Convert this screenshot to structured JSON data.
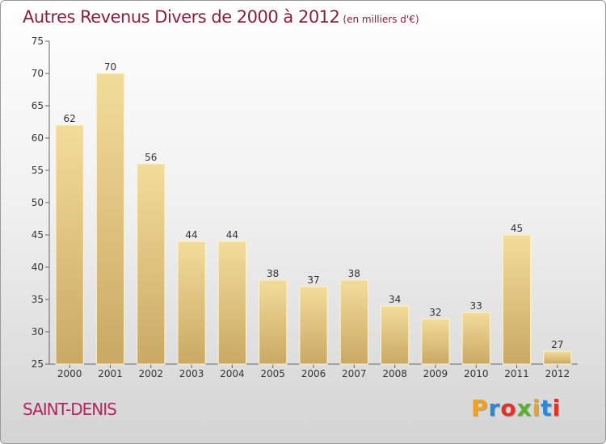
{
  "title": "Autres Revenus Divers de 2000 à 2012",
  "subtitle": "(en milliers d'€)",
  "city": "SAINT-DENIS",
  "logo": {
    "letters": [
      "P",
      "r",
      "o",
      "x",
      "i",
      "t",
      "i"
    ],
    "colors": [
      "#f0a21c",
      "#2a8ad8",
      "#e0342a",
      "#5ab02e",
      "#f0a21c",
      "#2a8ad8",
      "#e0342a"
    ]
  },
  "colors": {
    "title": "#8a1f3c",
    "city": "#b5245a",
    "bar_top": "#f3dc9a",
    "bar_bottom": "#c9a964",
    "axis": "#666666"
  },
  "chart_data": {
    "type": "bar",
    "title": "Autres Revenus Divers de 2000 à 2012",
    "subtitle": "(en milliers d'€)",
    "xlabel": "",
    "ylabel": "",
    "categories": [
      "2000",
      "2001",
      "2002",
      "2003",
      "2004",
      "2005",
      "2006",
      "2007",
      "2008",
      "2009",
      "2010",
      "2011",
      "2012"
    ],
    "values": [
      62,
      70,
      56,
      44,
      44,
      38,
      37,
      38,
      34,
      32,
      33,
      45,
      27
    ],
    "ylim": [
      25,
      75
    ],
    "yticks": [
      25,
      30,
      35,
      40,
      45,
      50,
      55,
      60,
      65,
      70,
      75
    ],
    "grid": false,
    "legend": "none"
  }
}
